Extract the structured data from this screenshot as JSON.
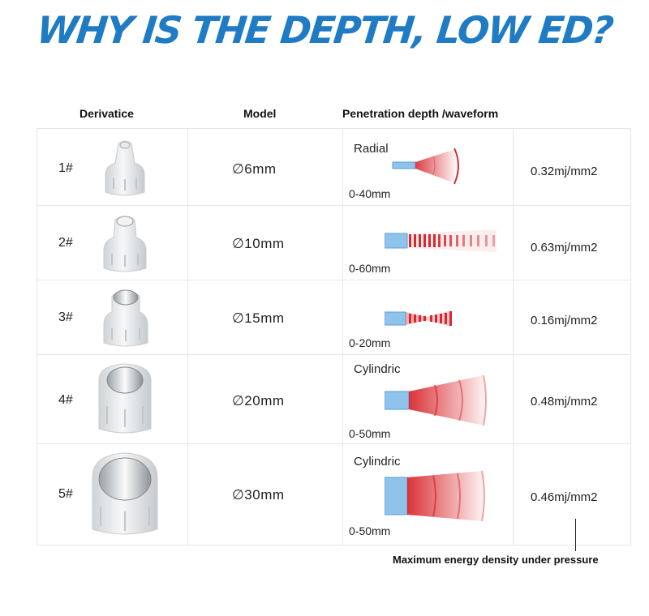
{
  "title": "WHY IS THE DEPTH, LOW ED?",
  "headers": {
    "derivative": "Derivatice",
    "model": "Model",
    "depth": "Penetration depth /waveform"
  },
  "rows": [
    {
      "num": "1#",
      "model": "∅6mm",
      "wave_label": "Radial",
      "depth": "0-40mm",
      "energy": "0.32mj/mm2"
    },
    {
      "num": "2#",
      "model": "∅10mm",
      "wave_label": "",
      "depth": "0-60mm",
      "energy": "0.63mj/mm2"
    },
    {
      "num": "3#",
      "model": "∅15mm",
      "wave_label": "",
      "depth": "0-20mm",
      "energy": "0.16mj/mm2"
    },
    {
      "num": "4#",
      "model": "∅20mm",
      "wave_label": "Cylindric",
      "depth": "0-50mm",
      "energy": "0.48mj/mm2"
    },
    {
      "num": "5#",
      "model": "∅30mm",
      "wave_label": "Cylindric",
      "depth": "0-50mm",
      "energy": "0.46mj/mm2"
    }
  ],
  "footer": "Maximum energy density under pressure",
  "colors": {
    "title": "#1f7bc4",
    "wave": "#d8282e",
    "probe": "#8fc3ec"
  }
}
